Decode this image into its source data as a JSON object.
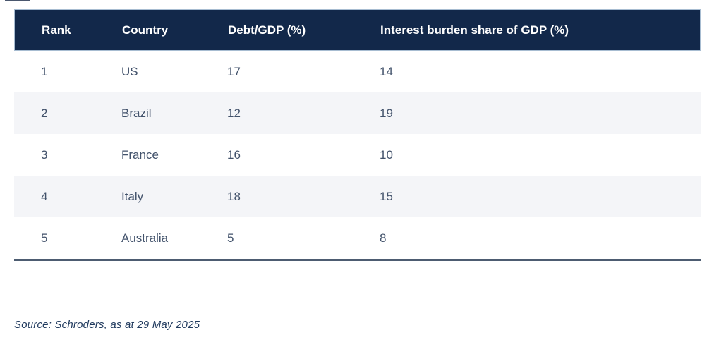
{
  "colors": {
    "header_background": "#12284a",
    "header_text": "#ffffff",
    "body_text": "#42526b",
    "stripe_row": "#f4f5f8",
    "bottom_rule": "#4d5c71",
    "source_text": "#203a5e",
    "page_background": "#ffffff"
  },
  "chart_data": {
    "type": "table",
    "columns": [
      "Rank",
      "Country",
      "Debt/GDP (%)",
      "Interest burden share of GDP (%)"
    ],
    "rows": [
      [
        "1",
        "US",
        "17",
        "14"
      ],
      [
        "2",
        "Brazil",
        "12",
        "19"
      ],
      [
        "3",
        "France",
        "16",
        "10"
      ],
      [
        "4",
        "Italy",
        "18",
        "15"
      ],
      [
        "5",
        "Australia",
        "5",
        "8"
      ]
    ],
    "title": "",
    "source": "Source: Schroders, as at 29 May 2025",
    "layout": {
      "striped_rows": [
        2,
        4
      ],
      "grid": false,
      "header_style": "solid-navy"
    }
  },
  "source_note": "Source: Schroders, as at 29 May 2025"
}
